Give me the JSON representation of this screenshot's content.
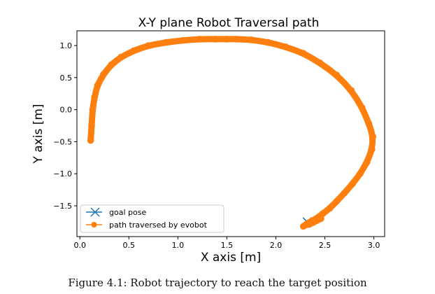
{
  "caption": "Figure 4.1: Robot trajectory to reach the target position",
  "colors": {
    "goal": "#1f77b4",
    "path": "#ff7f0e",
    "axes": "#000000",
    "legend_border": "#cccccc"
  },
  "chart_data": {
    "type": "scatter",
    "title": "X-Y plane Robot Traversal path",
    "xlabel": "X axis [m]",
    "ylabel": "Y axis [m]",
    "xlim": [
      -0.03,
      3.11
    ],
    "ylim": [
      -1.98,
      1.23
    ],
    "xticks": [
      0.0,
      0.5,
      1.0,
      1.5,
      2.0,
      2.5,
      3.0
    ],
    "xtick_labels": [
      "0.0",
      "0.5",
      "1.0",
      "1.5",
      "2.0",
      "2.5",
      "3.0"
    ],
    "yticks": [
      1.0,
      0.5,
      0.0,
      -0.5,
      -1.0,
      -1.5
    ],
    "ytick_labels": [
      "1.0",
      "0.5",
      "0.0",
      "−0.5",
      "−1.0",
      "−1.5"
    ],
    "grid": false,
    "legend": "lower-left",
    "series": [
      {
        "name": "goal pose",
        "marker": "x",
        "x": [
          2.32
        ],
        "y": [
          -1.75
        ]
      },
      {
        "name": "path traversed by evobot",
        "marker": "o",
        "x": [
          0.11,
          0.12,
          0.13,
          0.15,
          0.18,
          0.24,
          0.32,
          0.42,
          0.55,
          0.7,
          0.88,
          1.05,
          1.22,
          1.38,
          1.5,
          1.6,
          1.75,
          1.92,
          2.1,
          2.28,
          2.45,
          2.62,
          2.77,
          2.88,
          2.95,
          2.99,
          2.98,
          2.93,
          2.86,
          2.78,
          2.7,
          2.62,
          2.55,
          2.48,
          2.43,
          2.4,
          2.37,
          2.34,
          2.31,
          2.28,
          2.3,
          2.34,
          2.38,
          2.42,
          2.46
        ],
        "y": [
          -0.48,
          -0.25,
          0.0,
          0.2,
          0.38,
          0.55,
          0.7,
          0.82,
          0.92,
          1.0,
          1.05,
          1.08,
          1.1,
          1.1,
          1.1,
          1.1,
          1.09,
          1.05,
          0.98,
          0.88,
          0.73,
          0.54,
          0.3,
          0.03,
          -0.22,
          -0.42,
          -0.62,
          -0.82,
          -1.0,
          -1.16,
          -1.3,
          -1.43,
          -1.54,
          -1.62,
          -1.68,
          -1.71,
          -1.73,
          -1.76,
          -1.79,
          -1.82,
          -1.8,
          -1.79,
          -1.76,
          -1.73,
          -1.7
        ]
      }
    ]
  }
}
